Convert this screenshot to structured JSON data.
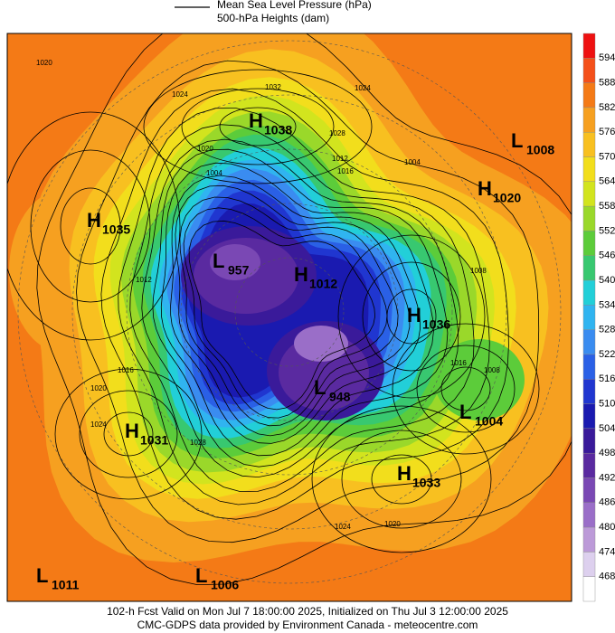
{
  "legend": {
    "items": [
      "Mean Sea Level Pressure (hPa)",
      "500-hPa Heights (dam)"
    ]
  },
  "colorbar": {
    "levels": [
      594,
      588,
      582,
      576,
      570,
      564,
      558,
      552,
      546,
      540,
      534,
      528,
      522,
      516,
      510,
      504,
      498,
      492,
      486,
      480,
      474,
      468
    ],
    "colors": [
      "#ee1111",
      "#f4501a",
      "#f47a16",
      "#f6a020",
      "#f8c020",
      "#f2de1c",
      "#d2e41e",
      "#9ad82a",
      "#5ccc3a",
      "#38c870",
      "#22cfd8",
      "#30b4f0",
      "#3a8cf0",
      "#2a60e6",
      "#2036d0",
      "#1a1ab0",
      "#3a1a9a",
      "#5a2aa0",
      "#7a48b4",
      "#9a6ec8",
      "#bc9ad8",
      "#ddd0ee",
      "#ffffff"
    ]
  },
  "centers": [
    {
      "type": "H",
      "value": 1038
    },
    {
      "type": "L",
      "value": 1008
    },
    {
      "type": "H",
      "value": 1020
    },
    {
      "type": "H",
      "value": 1035
    },
    {
      "type": "L",
      "value": 957
    },
    {
      "type": "H",
      "value": 1012
    },
    {
      "type": "H",
      "value": 1036
    },
    {
      "type": "L",
      "value": 948
    },
    {
      "type": "L",
      "value": 1004
    },
    {
      "type": "H",
      "value": 1031
    },
    {
      "type": "H",
      "value": 1033
    },
    {
      "type": "L",
      "value": 1011
    },
    {
      "type": "L",
      "value": 1006
    }
  ],
  "isobar_labels": [
    1020,
    1032,
    1024,
    1024,
    1028,
    1020,
    1004,
    1016,
    1012,
    1004,
    1008,
    1012,
    1016,
    1020,
    1024,
    1028,
    1024,
    1020,
    1008,
    1016
  ],
  "footer": {
    "lines": [
      "102-h Fcst Valid on Mon Jul  7 18:00:00 2025, Initialized on Thu Jul  3 12:00:00 2025",
      "CMC-GDPS data provided by Environment Canada - meteocentre.com"
    ]
  }
}
